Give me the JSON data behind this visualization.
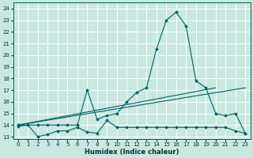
{
  "xlabel": "Humidex (Indice chaleur)",
  "bg_color": "#c8e8e0",
  "grid_color": "#ffffff",
  "line_color": "#006060",
  "xlim": [
    -0.5,
    23.5
  ],
  "ylim": [
    12.8,
    24.5
  ],
  "xticks": [
    0,
    1,
    2,
    3,
    4,
    5,
    6,
    7,
    8,
    9,
    10,
    11,
    12,
    13,
    14,
    15,
    16,
    17,
    18,
    19,
    20,
    21,
    22,
    23
  ],
  "yticks": [
    13,
    14,
    15,
    16,
    17,
    18,
    19,
    20,
    21,
    22,
    23,
    24
  ],
  "series": [
    {
      "x": [
        0,
        1,
        2,
        3,
        4,
        5,
        6,
        7,
        8,
        9,
        10,
        11,
        12,
        13,
        14,
        15,
        16,
        17,
        18,
        19,
        20,
        21,
        22,
        23
      ],
      "y": [
        13.9,
        14.0,
        13.0,
        13.2,
        13.5,
        13.5,
        13.8,
        13.4,
        13.3,
        14.4,
        13.8,
        13.8,
        13.8,
        13.8,
        13.8,
        13.8,
        13.8,
        13.8,
        13.8,
        13.8,
        13.8,
        13.8,
        13.5,
        13.3
      ]
    },
    {
      "x": [
        0,
        23
      ],
      "y": [
        14.0,
        17.2
      ]
    },
    {
      "x": [
        0,
        20
      ],
      "y": [
        14.0,
        17.2
      ]
    },
    {
      "x": [
        0,
        1,
        2,
        3,
        4,
        5,
        6,
        7,
        8,
        9,
        10,
        11,
        12,
        13,
        14,
        15,
        16,
        17,
        18,
        19,
        20,
        21,
        22,
        23
      ],
      "y": [
        14.0,
        14.0,
        14.0,
        14.0,
        14.0,
        14.0,
        14.0,
        17.0,
        14.5,
        14.8,
        15.0,
        16.0,
        16.8,
        17.2,
        20.5,
        23.0,
        23.7,
        22.5,
        17.8,
        17.2,
        15.0,
        14.8,
        15.0,
        13.3
      ]
    }
  ]
}
